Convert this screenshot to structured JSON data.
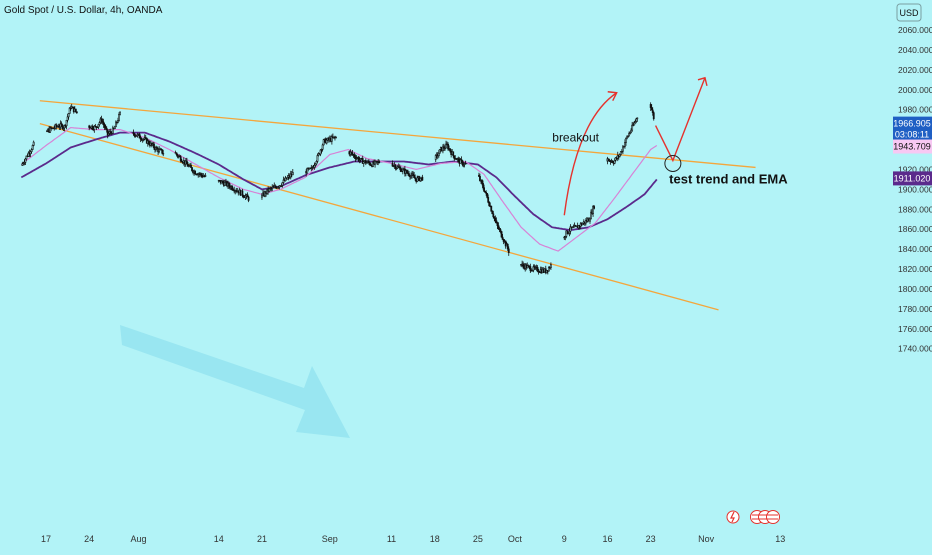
{
  "header": {
    "symbol_title": "Gold Spot / U.S. Dollar, 4h, OANDA",
    "currency_button": "USD"
  },
  "colors": {
    "background": "#b2f3f7",
    "candle": "#111111",
    "trend_channel": "#f4a63c",
    "ema_slow": "#5b2a8c",
    "ema_fast": "#d783d6",
    "arrow_red": "#e5322d",
    "downtrend_arrow": "#8fe0ee",
    "label_current": "#1f5fc4",
    "label_ema_fast": "#f7c8f3",
    "label_ema_slow": "#5b2a8c",
    "event_icon_red": "#e5322d"
  },
  "chart_data": {
    "type": "candlestick",
    "title": "Gold Spot / U.S. Dollar, 4h, OANDA",
    "xlabel": "",
    "ylabel": "",
    "ylim": [
      1730,
      2070
    ],
    "y_ticks": [
      "2060.000",
      "2040.000",
      "2020.000",
      "2000.000",
      "1980.000",
      "1960.000",
      "1940.000",
      "1920.000",
      "1900.000",
      "1880.000",
      "1860.000",
      "1840.000",
      "1820.000",
      "1800.000",
      "1780.000",
      "1760.000",
      "1740.000"
    ],
    "x_ticks": [
      {
        "label": "17",
        "day": 0
      },
      {
        "label": "24",
        "day": 7
      },
      {
        "label": "Aug",
        "day": 15
      },
      {
        "label": "14",
        "day": 28
      },
      {
        "label": "21",
        "day": 35
      },
      {
        "label": "Sep",
        "day": 46
      },
      {
        "label": "11",
        "day": 56
      },
      {
        "label": "18",
        "day": 63
      },
      {
        "label": "25",
        "day": 70
      },
      {
        "label": "Oct",
        "day": 76
      },
      {
        "label": "9",
        "day": 84
      },
      {
        "label": "16",
        "day": 91
      },
      {
        "label": "23",
        "day": 98
      },
      {
        "label": "Nov",
        "day": 107
      },
      {
        "label": "13",
        "day": 119
      }
    ],
    "price_path": [
      [
        -4,
        1924
      ],
      [
        -2,
        1945
      ],
      [
        0,
        1958
      ],
      [
        2,
        1964
      ],
      [
        3,
        1963
      ],
      [
        4,
        1983
      ],
      [
        5,
        1977
      ],
      [
        6,
        1965
      ],
      [
        8,
        1962
      ],
      [
        9,
        1970
      ],
      [
        10,
        1955
      ],
      [
        11,
        1960
      ],
      [
        12,
        1976
      ],
      [
        13,
        1964
      ],
      [
        14,
        1957
      ],
      [
        16,
        1950
      ],
      [
        17,
        1945
      ],
      [
        18,
        1940
      ],
      [
        19,
        1937
      ],
      [
        20,
        1942
      ],
      [
        22,
        1930
      ],
      [
        23,
        1924
      ],
      [
        24,
        1918
      ],
      [
        26,
        1912
      ],
      [
        27,
        1910
      ],
      [
        29,
        1906
      ],
      [
        31,
        1899
      ],
      [
        33,
        1890
      ],
      [
        34,
        1888
      ],
      [
        35,
        1893
      ],
      [
        36,
        1899
      ],
      [
        38,
        1905
      ],
      [
        40,
        1916
      ],
      [
        42,
        1918
      ],
      [
        43,
        1920
      ],
      [
        44,
        1932
      ],
      [
        45,
        1948
      ],
      [
        47,
        1952
      ],
      [
        48,
        1944
      ],
      [
        49,
        1938
      ],
      [
        51,
        1929
      ],
      [
        53,
        1925
      ],
      [
        55,
        1930
      ],
      [
        57,
        1922
      ],
      [
        59,
        1915
      ],
      [
        60,
        1910
      ],
      [
        62,
        1913
      ],
      [
        63,
        1930
      ],
      [
        64,
        1940
      ],
      [
        65,
        1944
      ],
      [
        66,
        1934
      ],
      [
        67,
        1928
      ],
      [
        68,
        1925
      ],
      [
        69,
        1923
      ],
      [
        70,
        1914
      ],
      [
        71,
        1900
      ],
      [
        72,
        1883
      ],
      [
        73,
        1865
      ],
      [
        74,
        1852
      ],
      [
        75,
        1838
      ],
      [
        76,
        1828
      ],
      [
        77,
        1824
      ],
      [
        78,
        1822
      ],
      [
        79,
        1820
      ],
      [
        81,
        1818
      ],
      [
        82,
        1825
      ],
      [
        83,
        1840
      ],
      [
        84,
        1854
      ],
      [
        85,
        1860
      ],
      [
        86,
        1862
      ],
      [
        87,
        1866
      ],
      [
        88,
        1870
      ],
      [
        89,
        1886
      ],
      [
        90,
        1920
      ],
      [
        91,
        1930
      ],
      [
        92,
        1928
      ],
      [
        93,
        1935
      ],
      [
        94,
        1950
      ],
      [
        95,
        1962
      ],
      [
        96,
        1975
      ],
      [
        97,
        1992
      ],
      [
        98,
        1984
      ],
      [
        98.5,
        1972
      ]
    ],
    "ema_fast_path": [
      [
        -4,
        1925
      ],
      [
        0,
        1944
      ],
      [
        4,
        1962
      ],
      [
        8,
        1960
      ],
      [
        12,
        1960
      ],
      [
        16,
        1952
      ],
      [
        20,
        1940
      ],
      [
        24,
        1926
      ],
      [
        28,
        1912
      ],
      [
        32,
        1900
      ],
      [
        35,
        1895
      ],
      [
        38,
        1900
      ],
      [
        42,
        1912
      ],
      [
        46,
        1935
      ],
      [
        49,
        1940
      ],
      [
        52,
        1931
      ],
      [
        56,
        1926
      ],
      [
        60,
        1920
      ],
      [
        64,
        1926
      ],
      [
        68,
        1928
      ],
      [
        71,
        1915
      ],
      [
        74,
        1888
      ],
      [
        77,
        1862
      ],
      [
        80,
        1845
      ],
      [
        83,
        1838
      ],
      [
        86,
        1852
      ],
      [
        89,
        1866
      ],
      [
        92,
        1890
      ],
      [
        95,
        1915
      ],
      [
        98,
        1940
      ],
      [
        99,
        1944
      ]
    ],
    "ema_slow_path": [
      [
        -4,
        1912
      ],
      [
        0,
        1926
      ],
      [
        4,
        1942
      ],
      [
        8,
        1950
      ],
      [
        12,
        1957
      ],
      [
        16,
        1957
      ],
      [
        20,
        1948
      ],
      [
        24,
        1937
      ],
      [
        28,
        1925
      ],
      [
        32,
        1910
      ],
      [
        35,
        1900
      ],
      [
        38,
        1903
      ],
      [
        42,
        1914
      ],
      [
        46,
        1922
      ],
      [
        50,
        1928
      ],
      [
        54,
        1928
      ],
      [
        58,
        1928
      ],
      [
        62,
        1925
      ],
      [
        66,
        1928
      ],
      [
        70,
        1925
      ],
      [
        73,
        1912
      ],
      [
        76,
        1893
      ],
      [
        79,
        1875
      ],
      [
        82,
        1862
      ],
      [
        85,
        1859
      ],
      [
        88,
        1862
      ],
      [
        91,
        1870
      ],
      [
        94,
        1882
      ],
      [
        97,
        1895
      ],
      [
        99,
        1910
      ]
    ],
    "trendlines": [
      {
        "from": [
          -1,
          1989
        ],
        "to": [
          115,
          1922
        ]
      },
      {
        "from": [
          -1,
          1966
        ],
        "to": [
          109,
          1779
        ]
      }
    ],
    "price_labels": [
      {
        "key": "current",
        "value": "1966.905",
        "sub": "03:08:11",
        "y": 1966
      },
      {
        "key": "ema_fast",
        "value": "1943.709",
        "y": 1943
      },
      {
        "key": "ema_slow",
        "value": "1911.020",
        "y": 1911
      }
    ],
    "annotations": [
      {
        "text": "breakout",
        "day": 84,
        "price": 1948
      },
      {
        "text": "test trend and EMA",
        "day": 101,
        "price": 1906
      }
    ]
  }
}
